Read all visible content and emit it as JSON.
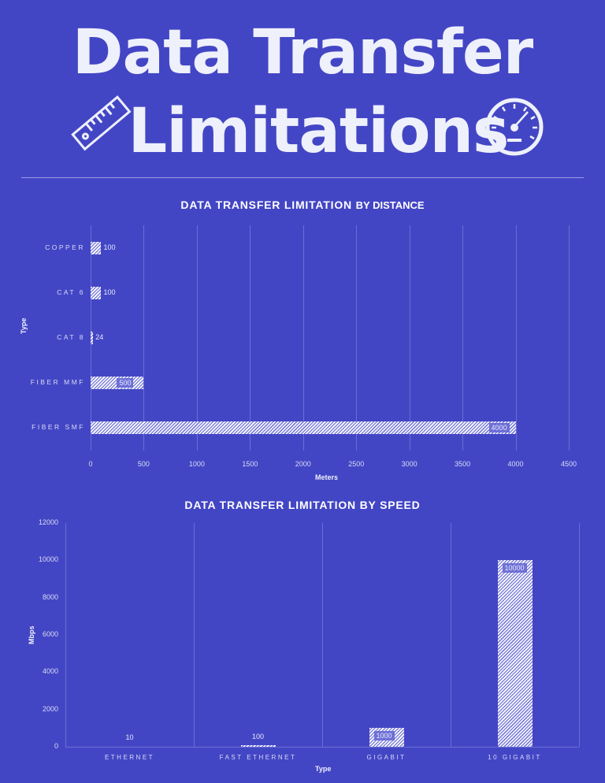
{
  "header": {
    "title_line1": "Data Transfer",
    "title_line2": "Limitations",
    "left_icon": "ruler-icon",
    "right_icon": "speedometer-icon"
  },
  "colors": {
    "background": "#4346c4",
    "text": "#eef0fb",
    "bar_stripe": "#ffffff",
    "gridline": "#6a6dd4"
  },
  "chart_data": [
    {
      "type": "bar",
      "orientation": "horizontal",
      "title": "DATA TRANSFER LIMITATION BY DISTANCE",
      "title_main": "DATA TRANSFER LIMITATION",
      "title_suffix": "BY DISTANCE",
      "xlabel": "Meters",
      "ylabel": "Type",
      "xlim": [
        0,
        4500
      ],
      "xticks": [
        "0",
        "500",
        "1000",
        "1500",
        "2000",
        "2500",
        "3000",
        "3500",
        "4000",
        "4500"
      ],
      "categories": [
        "COPPER",
        "CAT 6",
        "CAT 8",
        "FIBER MMF",
        "FIBER SMF"
      ],
      "values": [
        100,
        100,
        24,
        500,
        4000
      ],
      "value_labels": [
        "100",
        "100",
        "24",
        "500",
        "4000"
      ],
      "grid": "vertical",
      "legend": "none"
    },
    {
      "type": "bar",
      "orientation": "vertical",
      "title": "DATA TRANSFER LIMITATION BY SPEED",
      "xlabel": "Type",
      "ylabel": "Mbps",
      "ylim": [
        0,
        12000
      ],
      "yticks": [
        "12000",
        "10000",
        "8000",
        "6000",
        "4000",
        "2000",
        "0"
      ],
      "categories": [
        "ETHERNET",
        "FAST ETHERNET",
        "GIGABIT",
        "10 GIGABIT"
      ],
      "values": [
        10,
        100,
        1000,
        10000
      ],
      "value_labels": [
        "10",
        "100",
        "1000",
        "10000"
      ],
      "grid": "vertical",
      "legend": "none"
    }
  ]
}
